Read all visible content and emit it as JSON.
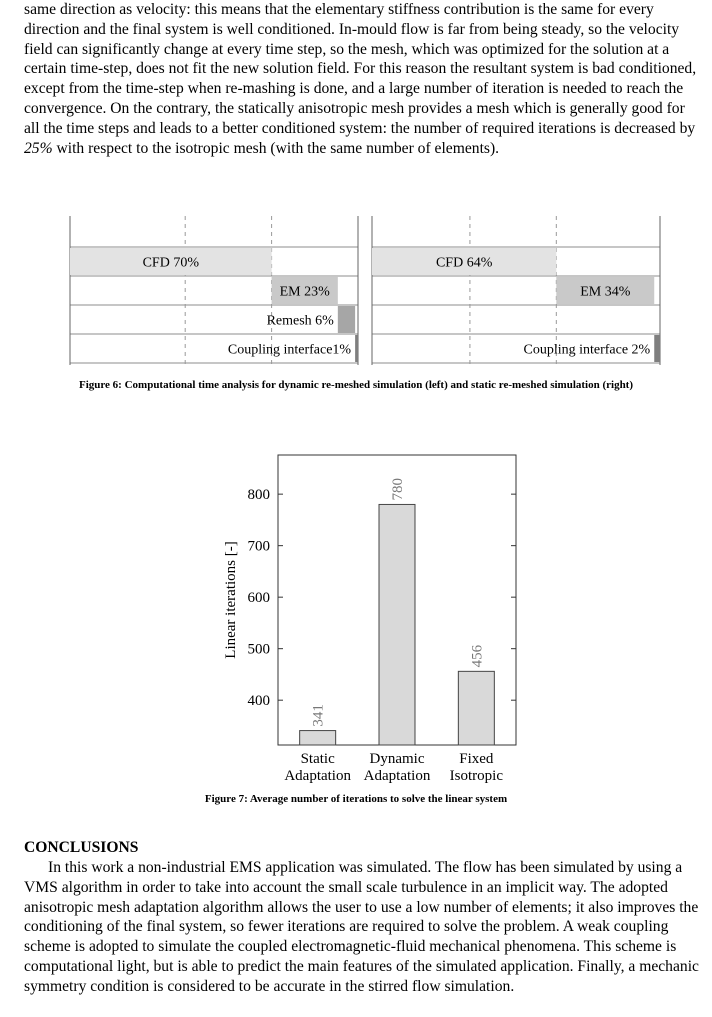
{
  "body_top": {
    "text_before": "same direction as velocity: this means that the elementary stiffness contribution is the same for every direction and the final system is well conditioned. In-mould flow is far from being steady, so the velocity field can significantly change at every time step, so the mesh, which was optimized for the solution at a certain time-step, does not fit the new solution field. For this reason the resultant system is bad conditioned, except from the time-step when re-mashing is done, and a large number of iteration is needed to reach the convergence. On the contrary, the statically anisotropic mesh provides a mesh which is generally good for all the time steps and leads to a better conditioned system: the number of required iterations is decreased by ",
    "emphasis": "25%",
    "text_after": " with respect to the isotropic mesh (with the same number of elements)."
  },
  "chart_data": [
    {
      "type": "timeline",
      "values": [
        70,
        23,
        6,
        1
      ],
      "value_labels": [
        "CFD 70%",
        "EM 23%",
        "Remesh 6%",
        "Coupling interface1%"
      ],
      "colors": [
        "#e3e3e3",
        "#c9c9c9",
        "#a6a6a6",
        "#7f7f7f"
      ],
      "xlim": [
        0,
        100
      ],
      "gridlines": [
        40,
        70
      ]
    },
    {
      "type": "timeline",
      "values": [
        64,
        34,
        2
      ],
      "value_labels": [
        "CFD 64%",
        "EM 34%",
        "Coupling interface 2%"
      ],
      "colors": [
        "#e3e3e3",
        "#c9c9c9",
        "#7f7f7f"
      ],
      "xlim": [
        0,
        100
      ],
      "gridlines": [
        34,
        64
      ]
    },
    {
      "type": "bar",
      "categories": [
        "Static Adaptation",
        "Dynamic Adaptation",
        "Fixed Isotropic"
      ],
      "values": [
        341,
        780,
        456
      ],
      "color": "#d9d9d9",
      "ylabel": "Linear iterations [-]",
      "ylim": [
        313,
        876
      ],
      "yticks": [
        400,
        500,
        600,
        700,
        800
      ]
    }
  ],
  "figure6_caption": "Figure 6: Computational time analysis for dynamic re-meshed simulation (left) and static re-meshed simulation (right)",
  "figure7_caption": "Figure 7: Average number of iterations to solve the linear system",
  "conclusions": {
    "heading": "CONCLUSIONS",
    "text": "In this work a non-industrial EMS application was simulated. The flow has been simulated by using a VMS algorithm in order to take into account the small scale turbulence in an implicit way. The adopted anisotropic mesh adaptation algorithm allows the user to use a low number of elements; it also improves the conditioning of the final system, so fewer iterations are required to solve the problem. A weak coupling scheme is adopted to simulate the coupled electromagnetic-fluid mechanical phenomena. This scheme is computational light, but is able to predict the main features of the simulated application. Finally, a mechanic symmetry condition is considered to be accurate in the stirred flow simulation."
  }
}
